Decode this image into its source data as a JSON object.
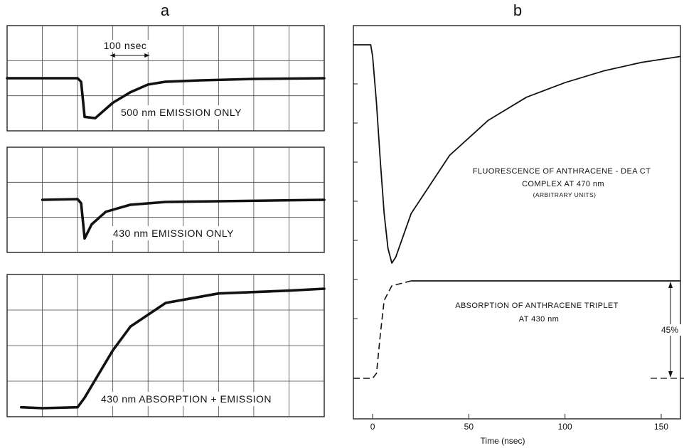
{
  "chart_data": [
    {
      "type": "line",
      "panel": "a",
      "grid": true,
      "traces": [
        {
          "label": "500 nm EMISSION ONLY",
          "scale_annotation": "100 nsec",
          "points": [
            [
              0,
              0.75
            ],
            [
              2.0,
              0.75
            ],
            [
              2.1,
              0.7
            ],
            [
              2.2,
              0.2
            ],
            [
              2.5,
              0.18
            ],
            [
              3.0,
              0.4
            ],
            [
              3.5,
              0.55
            ],
            [
              4.0,
              0.66
            ],
            [
              4.5,
              0.7
            ],
            [
              5.5,
              0.72
            ],
            [
              7.0,
              0.74
            ],
            [
              9.0,
              0.75
            ]
          ]
        },
        {
          "label": "430 nm EMISSION ONLY",
          "points": [
            [
              1.0,
              0.75
            ],
            [
              2.0,
              0.76
            ],
            [
              2.1,
              0.7
            ],
            [
              2.2,
              0.2
            ],
            [
              2.4,
              0.4
            ],
            [
              2.8,
              0.58
            ],
            [
              3.5,
              0.68
            ],
            [
              4.5,
              0.72
            ],
            [
              6.0,
              0.73
            ],
            [
              9.0,
              0.75
            ]
          ]
        },
        {
          "label": "430 nm ABSORPTION + EMISSION",
          "points": [
            [
              0.4,
              0.1
            ],
            [
              1.0,
              0.09
            ],
            [
              2.0,
              0.1
            ],
            [
              2.2,
              0.2
            ],
            [
              2.6,
              0.45
            ],
            [
              3.0,
              0.7
            ],
            [
              3.5,
              0.95
            ],
            [
              4.5,
              1.2
            ],
            [
              6.0,
              1.3
            ],
            [
              8.0,
              1.33
            ],
            [
              9.0,
              1.35
            ]
          ]
        }
      ]
    },
    {
      "type": "line",
      "panel": "b",
      "xlabel": "Time (nsec)",
      "xlim": [
        -10,
        160
      ],
      "xticks": [
        "0",
        "50",
        "100",
        "150"
      ],
      "series": [
        {
          "label": "FLUORESCENCE OF ANTHRACENE - DEA CT\nCOMPLEX AT 470 nm",
          "note": "(ARBITRARY UNITS)",
          "style": "solid",
          "points": [
            [
              -10,
              1.0
            ],
            [
              -1,
              1.0
            ],
            [
              0,
              0.96
            ],
            [
              2,
              0.8
            ],
            [
              4,
              0.6
            ],
            [
              6,
              0.42
            ],
            [
              8,
              0.3
            ],
            [
              10,
              0.25
            ],
            [
              12,
              0.27
            ],
            [
              20,
              0.42
            ],
            [
              40,
              0.62
            ],
            [
              60,
              0.74
            ],
            [
              80,
              0.82
            ],
            [
              100,
              0.87
            ],
            [
              120,
              0.91
            ],
            [
              140,
              0.94
            ],
            [
              160,
              0.96
            ]
          ]
        },
        {
          "label": "ABSORPTION OF ANTHRACENE TRIPLET\nAT 430 nm",
          "style": "dashed",
          "points": [
            [
              -10,
              0.0
            ],
            [
              0,
              0.0
            ],
            [
              2,
              0.05
            ],
            [
              4,
              0.45
            ],
            [
              6,
              0.8
            ],
            [
              10,
              0.95
            ],
            [
              20,
              1.0
            ],
            [
              160,
              1.0
            ]
          ]
        }
      ],
      "annotation": "45%"
    }
  ]
}
